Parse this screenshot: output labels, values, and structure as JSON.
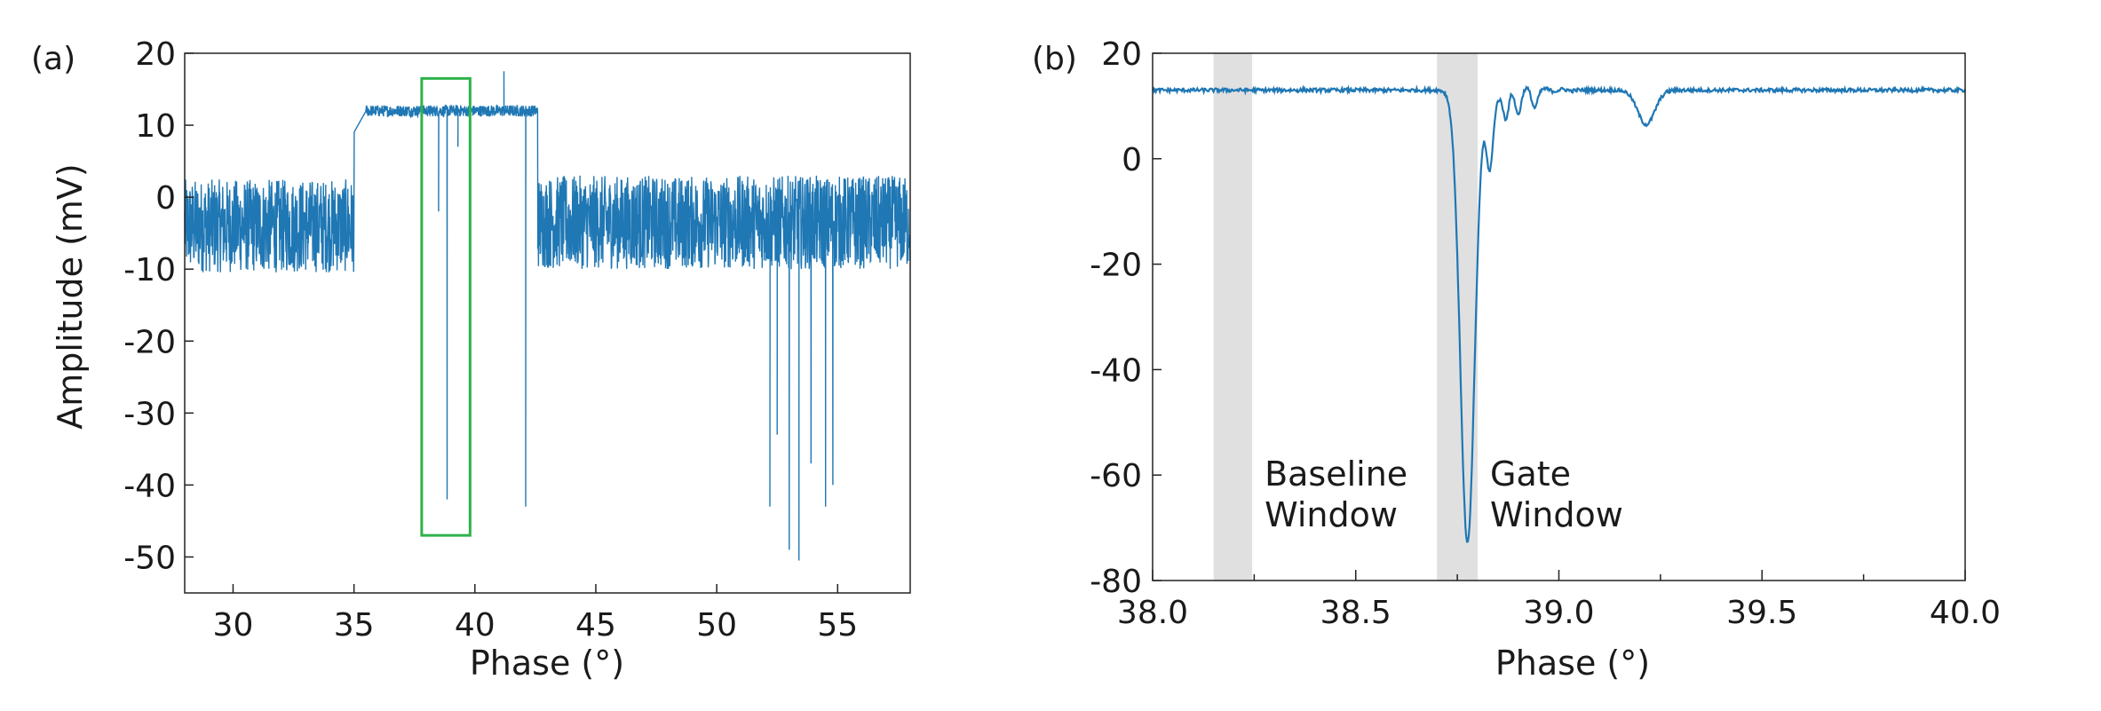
{
  "chart_data": [
    {
      "type": "line",
      "panel_label": "(a)",
      "title": "",
      "xlabel": "Phase (°)",
      "ylabel": "Amplitude (mV)",
      "xlim": [
        28,
        58
      ],
      "ylim": [
        -55,
        20
      ],
      "xticks": [
        30,
        35,
        40,
        45,
        50,
        55
      ],
      "yticks": [
        20,
        10,
        0,
        -10,
        -20,
        -30,
        -40,
        -50
      ],
      "tick_labels_x": [
        "30",
        "35",
        "40",
        "45",
        "50",
        "55"
      ],
      "tick_labels_y": [
        "20",
        "10",
        "0",
        "-10",
        "-20",
        "-30",
        "-40",
        "-50"
      ],
      "grid": false,
      "series_color": "#1f77b4",
      "highlight_box": {
        "x": [
          37.8,
          39.8
        ],
        "y": [
          -47,
          16.5
        ],
        "color": "#2db34a"
      },
      "segments": [
        {
          "x": [
            28,
            35
          ],
          "center": -4,
          "noise": 6.5
        },
        {
          "x": [
            35,
            42.6
          ],
          "center": 12,
          "noise": 0.8
        },
        {
          "x": [
            42.6,
            58
          ],
          "center": -3.5,
          "noise": 6.5
        }
      ],
      "spikes": [
        {
          "x": 38.5,
          "y": -2
        },
        {
          "x": 38.85,
          "y": -42
        },
        {
          "x": 39.3,
          "y": 7
        },
        {
          "x": 41.2,
          "y": 17.5
        },
        {
          "x": 42.1,
          "y": -43
        },
        {
          "x": 52.2,
          "y": -43
        },
        {
          "x": 52.5,
          "y": -33
        },
        {
          "x": 53.0,
          "y": -49
        },
        {
          "x": 53.4,
          "y": -50.5
        },
        {
          "x": 53.9,
          "y": -37
        },
        {
          "x": 54.5,
          "y": -43
        },
        {
          "x": 54.8,
          "y": -40
        }
      ]
    },
    {
      "type": "line",
      "panel_label": "(b)",
      "title": "",
      "xlabel": "Phase (°)",
      "ylabel": "",
      "xlim": [
        38.0,
        40.0
      ],
      "ylim": [
        -80,
        20
      ],
      "xticks": [
        38.0,
        38.5,
        39.0,
        39.5,
        40.0
      ],
      "yticks": [
        20,
        0,
        -20,
        -40,
        -60,
        -80
      ],
      "minor_xticks": [
        38.25,
        38.75,
        39.25,
        39.75
      ],
      "tick_labels_x": [
        "38.0",
        "38.5",
        "39.0",
        "39.5",
        "40.0"
      ],
      "tick_labels_y": [
        "20",
        "0",
        "-20",
        "-40",
        "-60",
        "-80"
      ],
      "grid": false,
      "series_color": "#1f77b4",
      "shaded_regions": [
        {
          "x": [
            38.15,
            38.245
          ],
          "label_lines": [
            "Baseline",
            "Window"
          ]
        },
        {
          "x": [
            38.7,
            38.8
          ],
          "label_lines": [
            "Gate",
            "Window"
          ]
        }
      ],
      "baseline": 13,
      "features": [
        {
          "x": 38.775,
          "y": -73,
          "width": 0.025
        },
        {
          "x": 38.83,
          "y": -3,
          "width": 0.012
        },
        {
          "x": 38.87,
          "y": 7,
          "width": 0.01
        },
        {
          "x": 38.9,
          "y": 9,
          "width": 0.01
        },
        {
          "x": 38.94,
          "y": 10,
          "width": 0.01
        },
        {
          "x": 39.215,
          "y": 6.5,
          "width": 0.03
        }
      ]
    }
  ]
}
